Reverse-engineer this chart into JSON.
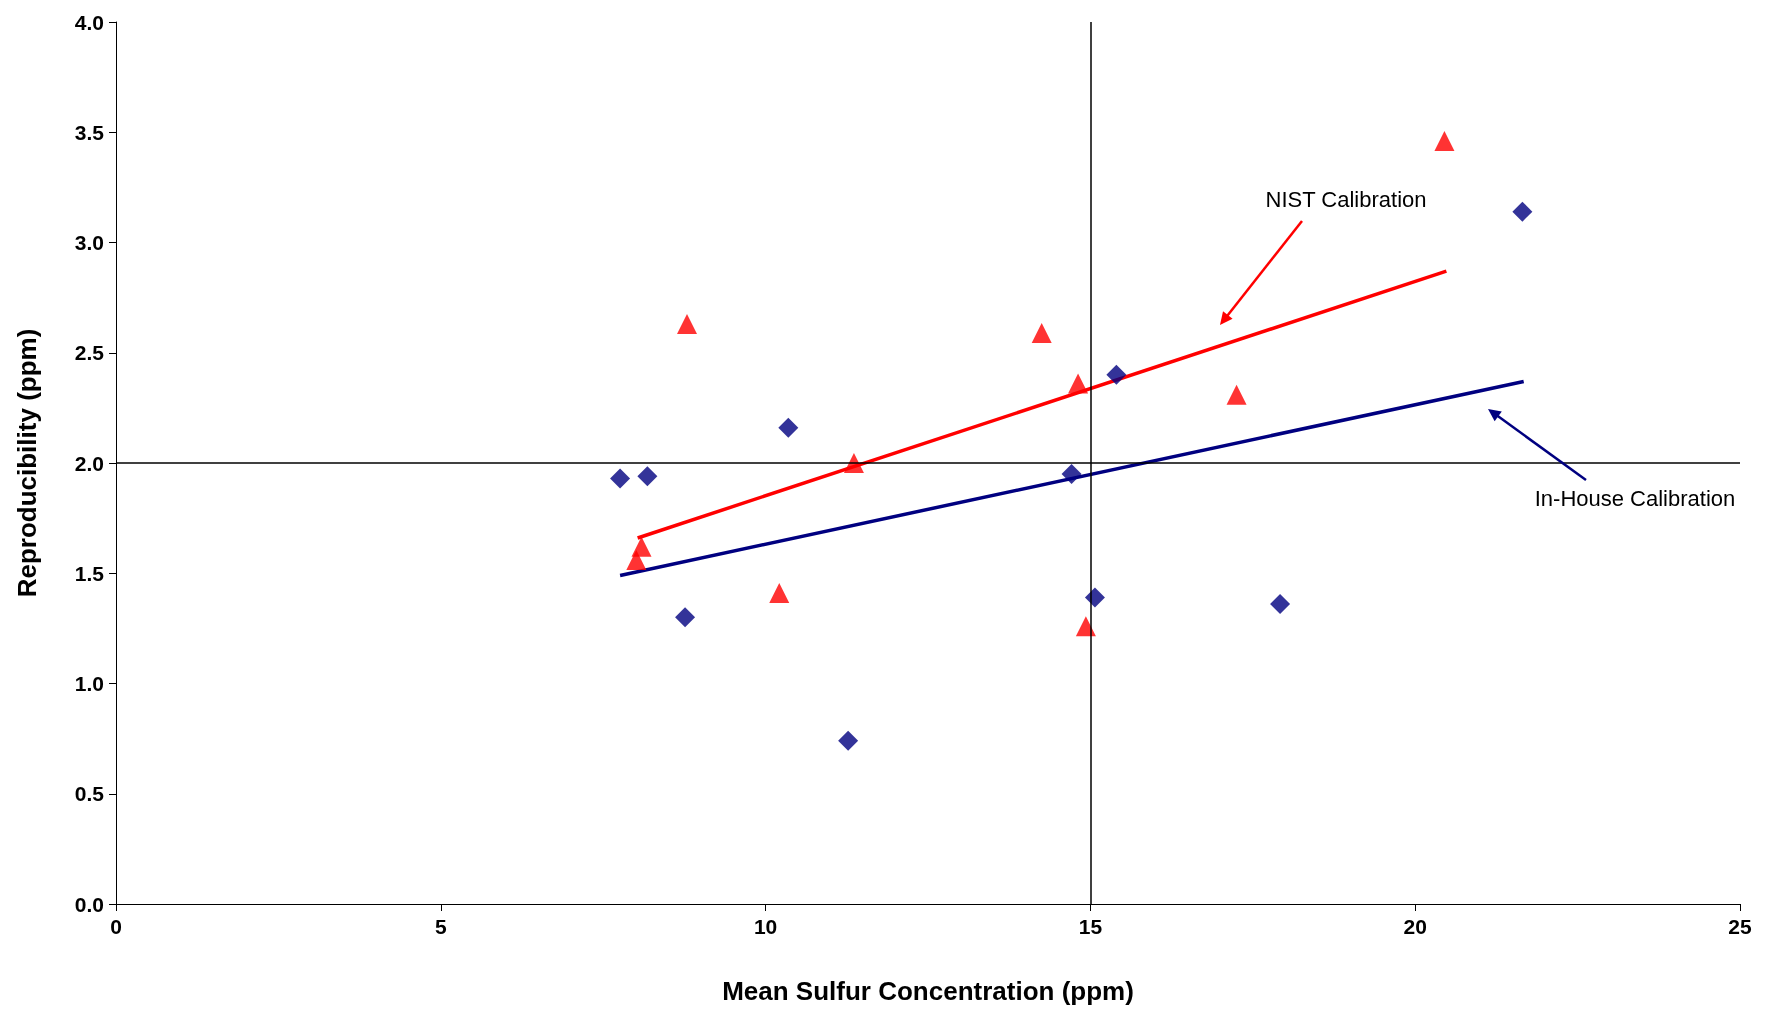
{
  "chart_data": {
    "type": "scatter",
    "xlabel": "Mean Sulfur Concentration (ppm)",
    "ylabel": "Reproducibility (ppm)",
    "xlim": [
      0,
      25
    ],
    "xticks": [
      0,
      5,
      10,
      15,
      20,
      25
    ],
    "ylim": [
      0,
      4
    ],
    "yticks": [
      {
        "value": 0,
        "label": "0.0"
      },
      {
        "value": 0.5,
        "label": "0.5"
      },
      {
        "value": 1,
        "label": "1.0"
      },
      {
        "value": 1.5,
        "label": "1.5"
      },
      {
        "value": 2,
        "label": "2.0"
      },
      {
        "value": 2.5,
        "label": "2.5"
      },
      {
        "value": 3,
        "label": "3.0"
      },
      {
        "value": 3.5,
        "label": "3.5"
      },
      {
        "value": 4,
        "label": "4.0"
      }
    ],
    "grid": false,
    "series": [
      {
        "type": "scatter",
        "marker": "diamond",
        "color": "#000080",
        "x": [
          7.76,
          8.18,
          8.76,
          10.35,
          11.27,
          14.71,
          15.4,
          15.07,
          17.92,
          21.65
        ],
        "values": [
          1.93,
          1.94,
          1.3,
          2.16,
          0.74,
          1.95,
          2.4,
          1.39,
          1.36,
          3.14
        ]
      },
      {
        "type": "scatter",
        "marker": "triangle",
        "color": "#ff0000",
        "x": [
          8.79,
          8.01,
          8.09,
          10.21,
          11.36,
          14.25,
          14.81,
          14.93,
          17.25,
          20.45
        ],
        "values": [
          2.63,
          1.56,
          1.62,
          1.41,
          2.0,
          2.59,
          2.36,
          1.26,
          2.31,
          3.46
        ]
      },
      {
        "type": "line",
        "marker": "none",
        "color": "#ff0000",
        "x": [
          8.03,
          20.48
        ],
        "values": [
          1.66,
          2.87
        ]
      },
      {
        "type": "line",
        "marker": "none",
        "color": "#000080",
        "x": [
          7.76,
          21.67
        ],
        "values": [
          1.49,
          2.37
        ]
      }
    ],
    "ref_lines": [
      {
        "axis": "x",
        "value": 15,
        "color": "#000000"
      },
      {
        "axis": "y",
        "value": 2,
        "color": "#000000"
      }
    ],
    "annotations": [
      "NIST Calibration",
      "In-House Calibration"
    ]
  }
}
